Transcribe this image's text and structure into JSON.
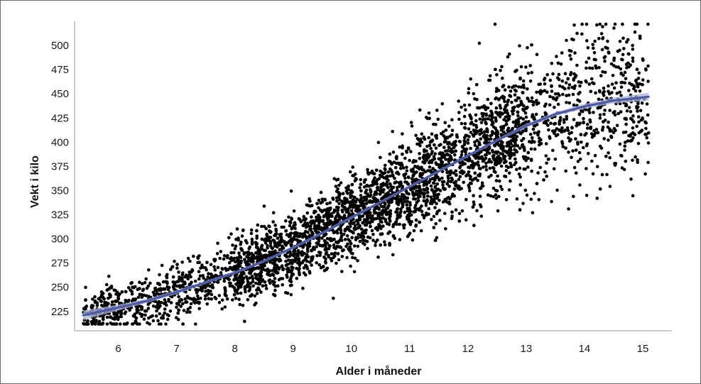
{
  "chart_data": {
    "type": "scatter",
    "title": "",
    "xlabel": "Alder i måneder",
    "ylabel": "Vekt i kilo",
    "xlim": [
      5.25,
      15.5
    ],
    "ylim": [
      205,
      525
    ],
    "x_ticks": [
      6,
      7,
      8,
      9,
      10,
      11,
      12,
      13,
      14,
      15
    ],
    "y_ticks": [
      225,
      250,
      275,
      300,
      325,
      350,
      375,
      400,
      425,
      450,
      475,
      500
    ],
    "grid": false,
    "legend": "none",
    "point_color": "#000000",
    "trend_color": "#4a5aa8",
    "band_color": "#a9b3d6",
    "trend": {
      "x": [
        5.4,
        6.0,
        6.5,
        7.0,
        7.5,
        8.0,
        8.5,
        9.0,
        9.5,
        10.0,
        10.5,
        11.0,
        11.5,
        12.0,
        12.5,
        13.0,
        13.5,
        14.0,
        14.5,
        15.1
      ],
      "y": [
        221,
        229,
        236,
        245,
        255,
        265,
        277,
        291,
        306,
        322,
        338,
        354,
        370,
        386,
        402,
        417,
        429,
        437,
        443,
        447
      ]
    },
    "band_halfwidth": [
      5,
      3,
      2,
      2,
      1.5,
      1.5,
      1.5,
      1.5,
      1.5,
      1.5,
      1.5,
      1.5,
      1.5,
      1.5,
      1.5,
      2,
      2,
      2.5,
      3,
      4
    ],
    "point_count": 4200,
    "point_x_range": [
      5.4,
      15.1
    ],
    "spread": {
      "x": [
        5.4,
        6.5,
        7.5,
        8.5,
        9.5,
        10.5,
        11.5,
        12.5,
        13.5,
        14.5,
        15.1
      ],
      "sd": [
        10,
        14,
        15,
        17,
        19,
        22,
        26,
        30,
        34,
        38,
        38
      ]
    }
  }
}
